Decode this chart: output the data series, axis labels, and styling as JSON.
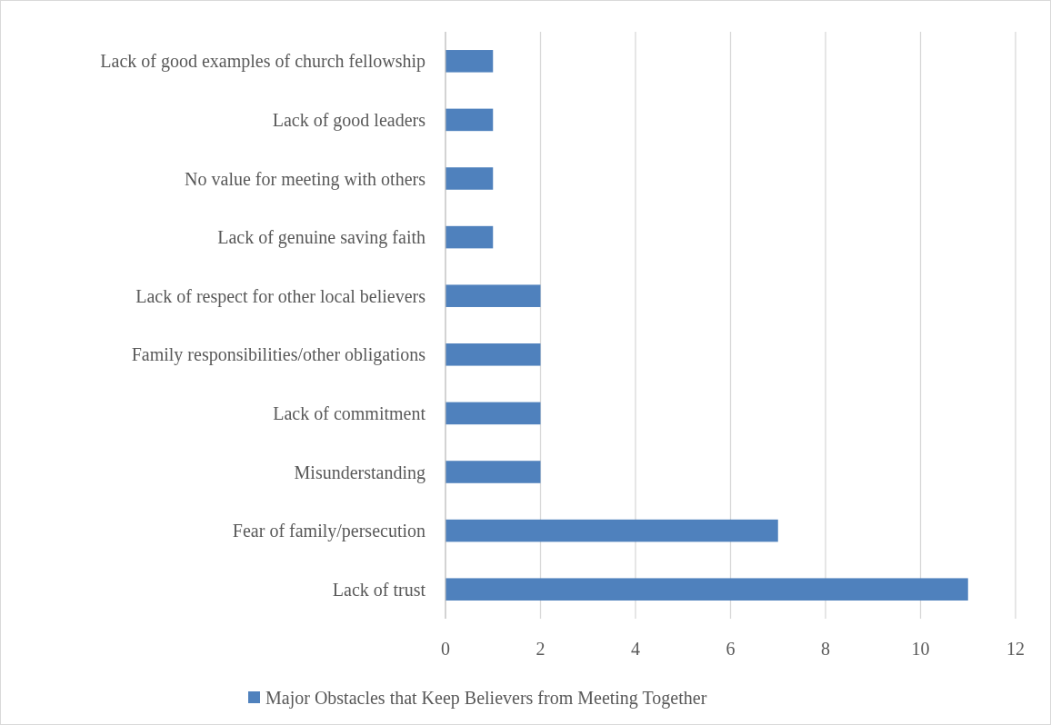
{
  "chart_data": {
    "type": "bar",
    "orientation": "horizontal",
    "categories": [
      "Lack of good examples of church fellowship",
      "Lack of good leaders",
      "No value for meeting with others",
      "Lack of genuine saving faith",
      "Lack of respect for other local believers",
      "Family responsibilities/other obligations",
      "Lack of commitment",
      "Misunderstanding",
      "Fear of family/persecution",
      "Lack of trust"
    ],
    "series": [
      {
        "name": "Major Obstacles that Keep Believers from Meeting Together",
        "color": "#4f81bd",
        "values": [
          1,
          1,
          1,
          1,
          2,
          2,
          2,
          2,
          7,
          11
        ]
      }
    ],
    "xlim": [
      0,
      12
    ],
    "xticks": [
      0,
      2,
      4,
      6,
      8,
      10,
      12
    ],
    "grid": "x",
    "legend": "bottom"
  }
}
